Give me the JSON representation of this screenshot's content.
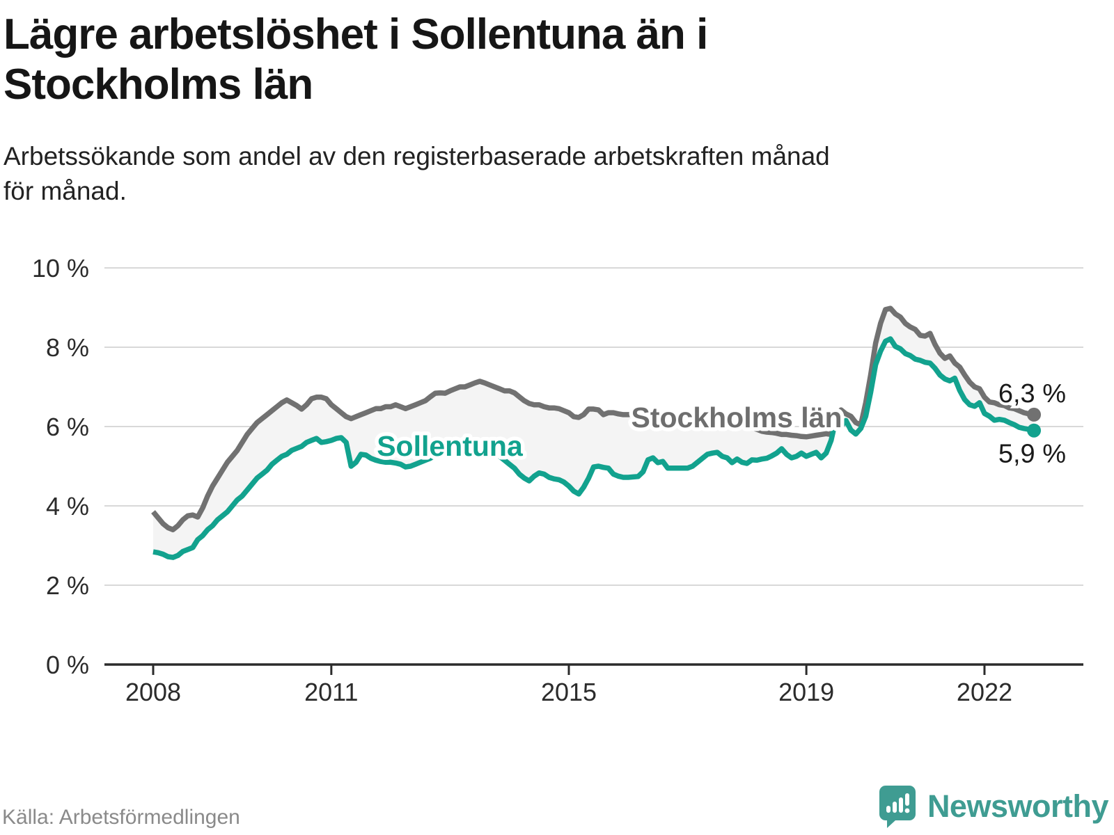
{
  "header": {
    "title_lines": [
      "Lägre arbetslöshet i Sollentuna än i",
      "Stockholms län"
    ],
    "subtitle_lines": [
      "Arbetssökande som andel av den registerbaserade arbetskraften månad",
      "för månad."
    ]
  },
  "chart_data": {
    "type": "line",
    "unit": "%",
    "frequency": "monthly",
    "start": {
      "year": 2008,
      "month": 1
    },
    "end": {
      "year": 2022,
      "month": 11
    },
    "ylim": [
      0,
      10
    ],
    "grid": true,
    "y_ticks": [
      {
        "value": 0,
        "label": "0 %"
      },
      {
        "value": 2,
        "label": "2 %"
      },
      {
        "value": 4,
        "label": "4 %"
      },
      {
        "value": 6,
        "label": "6 %"
      },
      {
        "value": 8,
        "label": "8 %"
      },
      {
        "value": 10,
        "label": "10 %"
      }
    ],
    "x_ticks": [
      {
        "year": 2008,
        "label": "2008"
      },
      {
        "year": 2011,
        "label": "2011"
      },
      {
        "year": 2015,
        "label": "2015"
      },
      {
        "year": 2019,
        "label": "2019"
      },
      {
        "year": 2022,
        "label": "2022"
      }
    ],
    "fill_between_color": "#f4f4f4",
    "series": [
      {
        "name": "Stockholms län",
        "color": "#717171",
        "label_color": "#6e6e6e",
        "end_label": "6,3 %",
        "last_value": 6.3,
        "values": [
          3.85,
          3.7,
          3.55,
          3.45,
          3.4,
          3.5,
          3.65,
          3.75,
          3.77,
          3.72,
          3.95,
          4.25,
          4.5,
          4.7,
          4.9,
          5.1,
          5.25,
          5.4,
          5.6,
          5.8,
          5.95,
          6.1,
          6.2,
          6.3,
          6.4,
          6.5,
          6.6,
          6.67,
          6.6,
          6.53,
          6.44,
          6.55,
          6.7,
          6.74,
          6.74,
          6.7,
          6.55,
          6.45,
          6.35,
          6.25,
          6.2,
          6.25,
          6.3,
          6.35,
          6.4,
          6.45,
          6.45,
          6.5,
          6.5,
          6.55,
          6.5,
          6.45,
          6.5,
          6.55,
          6.6,
          6.65,
          6.75,
          6.84,
          6.85,
          6.84,
          6.9,
          6.95,
          7.0,
          7.0,
          7.05,
          7.1,
          7.14,
          7.1,
          7.05,
          7.0,
          6.95,
          6.9,
          6.9,
          6.85,
          6.75,
          6.65,
          6.58,
          6.55,
          6.55,
          6.5,
          6.47,
          6.47,
          6.45,
          6.4,
          6.35,
          6.25,
          6.23,
          6.3,
          6.44,
          6.44,
          6.42,
          6.3,
          6.35,
          6.35,
          6.32,
          6.3,
          6.3,
          6.32,
          6.28,
          6.3,
          6.32,
          6.28,
          6.3,
          6.28,
          6.25,
          6.25,
          6.22,
          6.2,
          6.2,
          6.18,
          6.15,
          6.17,
          6.2,
          6.18,
          6.15,
          6.12,
          6.1,
          6.07,
          6.05,
          6.02,
          6.0,
          5.97,
          5.93,
          5.88,
          5.86,
          5.85,
          5.83,
          5.8,
          5.8,
          5.78,
          5.77,
          5.75,
          5.74,
          5.76,
          5.78,
          5.8,
          5.82,
          5.8,
          6.21,
          6.42,
          6.32,
          6.26,
          6.1,
          6.04,
          6.6,
          7.3,
          8.1,
          8.6,
          8.95,
          8.98,
          8.84,
          8.76,
          8.6,
          8.51,
          8.45,
          8.3,
          8.28,
          8.35,
          8.07,
          7.85,
          7.72,
          7.78,
          7.6,
          7.5,
          7.3,
          7.12,
          7.0,
          6.95,
          6.74,
          6.62,
          6.6,
          6.55,
          6.53,
          6.47,
          6.45,
          6.4,
          6.35,
          6.32,
          6.3
        ]
      },
      {
        "name": "Sollentuna",
        "color": "#12a28e",
        "label_color": "#12a28e",
        "end_label": "5,9 %",
        "last_value": 5.9,
        "values": [
          2.84,
          2.82,
          2.78,
          2.72,
          2.7,
          2.75,
          2.85,
          2.9,
          2.95,
          3.15,
          3.25,
          3.4,
          3.5,
          3.65,
          3.75,
          3.85,
          4.0,
          4.15,
          4.25,
          4.4,
          4.55,
          4.7,
          4.8,
          4.9,
          5.05,
          5.15,
          5.25,
          5.3,
          5.4,
          5.45,
          5.5,
          5.6,
          5.65,
          5.7,
          5.6,
          5.62,
          5.65,
          5.7,
          5.72,
          5.6,
          5.0,
          5.1,
          5.3,
          5.28,
          5.2,
          5.15,
          5.12,
          5.1,
          5.1,
          5.08,
          5.05,
          4.98,
          5.0,
          5.05,
          5.1,
          5.15,
          5.2,
          5.28,
          5.32,
          5.35,
          5.4,
          5.45,
          5.5,
          5.55,
          5.6,
          5.62,
          5.6,
          5.55,
          5.45,
          5.35,
          5.25,
          5.15,
          5.05,
          4.95,
          4.8,
          4.7,
          4.63,
          4.75,
          4.83,
          4.8,
          4.72,
          4.68,
          4.66,
          4.6,
          4.5,
          4.37,
          4.3,
          4.47,
          4.7,
          4.98,
          5.0,
          4.97,
          4.95,
          4.8,
          4.75,
          4.72,
          4.72,
          4.73,
          4.74,
          4.86,
          5.16,
          5.21,
          5.09,
          5.12,
          4.95,
          4.95,
          4.95,
          4.95,
          4.95,
          5.0,
          5.1,
          5.2,
          5.3,
          5.33,
          5.35,
          5.25,
          5.21,
          5.09,
          5.18,
          5.1,
          5.07,
          5.16,
          5.15,
          5.18,
          5.2,
          5.26,
          5.33,
          5.44,
          5.3,
          5.21,
          5.25,
          5.33,
          5.25,
          5.3,
          5.35,
          5.21,
          5.33,
          5.65,
          6.2,
          6.0,
          6.15,
          5.91,
          5.81,
          5.95,
          6.26,
          6.86,
          7.56,
          7.9,
          8.15,
          8.21,
          8.02,
          7.96,
          7.84,
          7.79,
          7.7,
          7.67,
          7.62,
          7.6,
          7.47,
          7.3,
          7.2,
          7.15,
          7.22,
          6.91,
          6.68,
          6.55,
          6.51,
          6.6,
          6.33,
          6.26,
          6.16,
          6.18,
          6.16,
          6.1,
          6.05,
          5.98,
          5.95,
          5.93,
          5.9
        ]
      }
    ]
  },
  "footer": {
    "source": "Källa: Arbetsförmedlingen",
    "brand": "Newsworthy",
    "brand_color": "#3f9c92"
  }
}
